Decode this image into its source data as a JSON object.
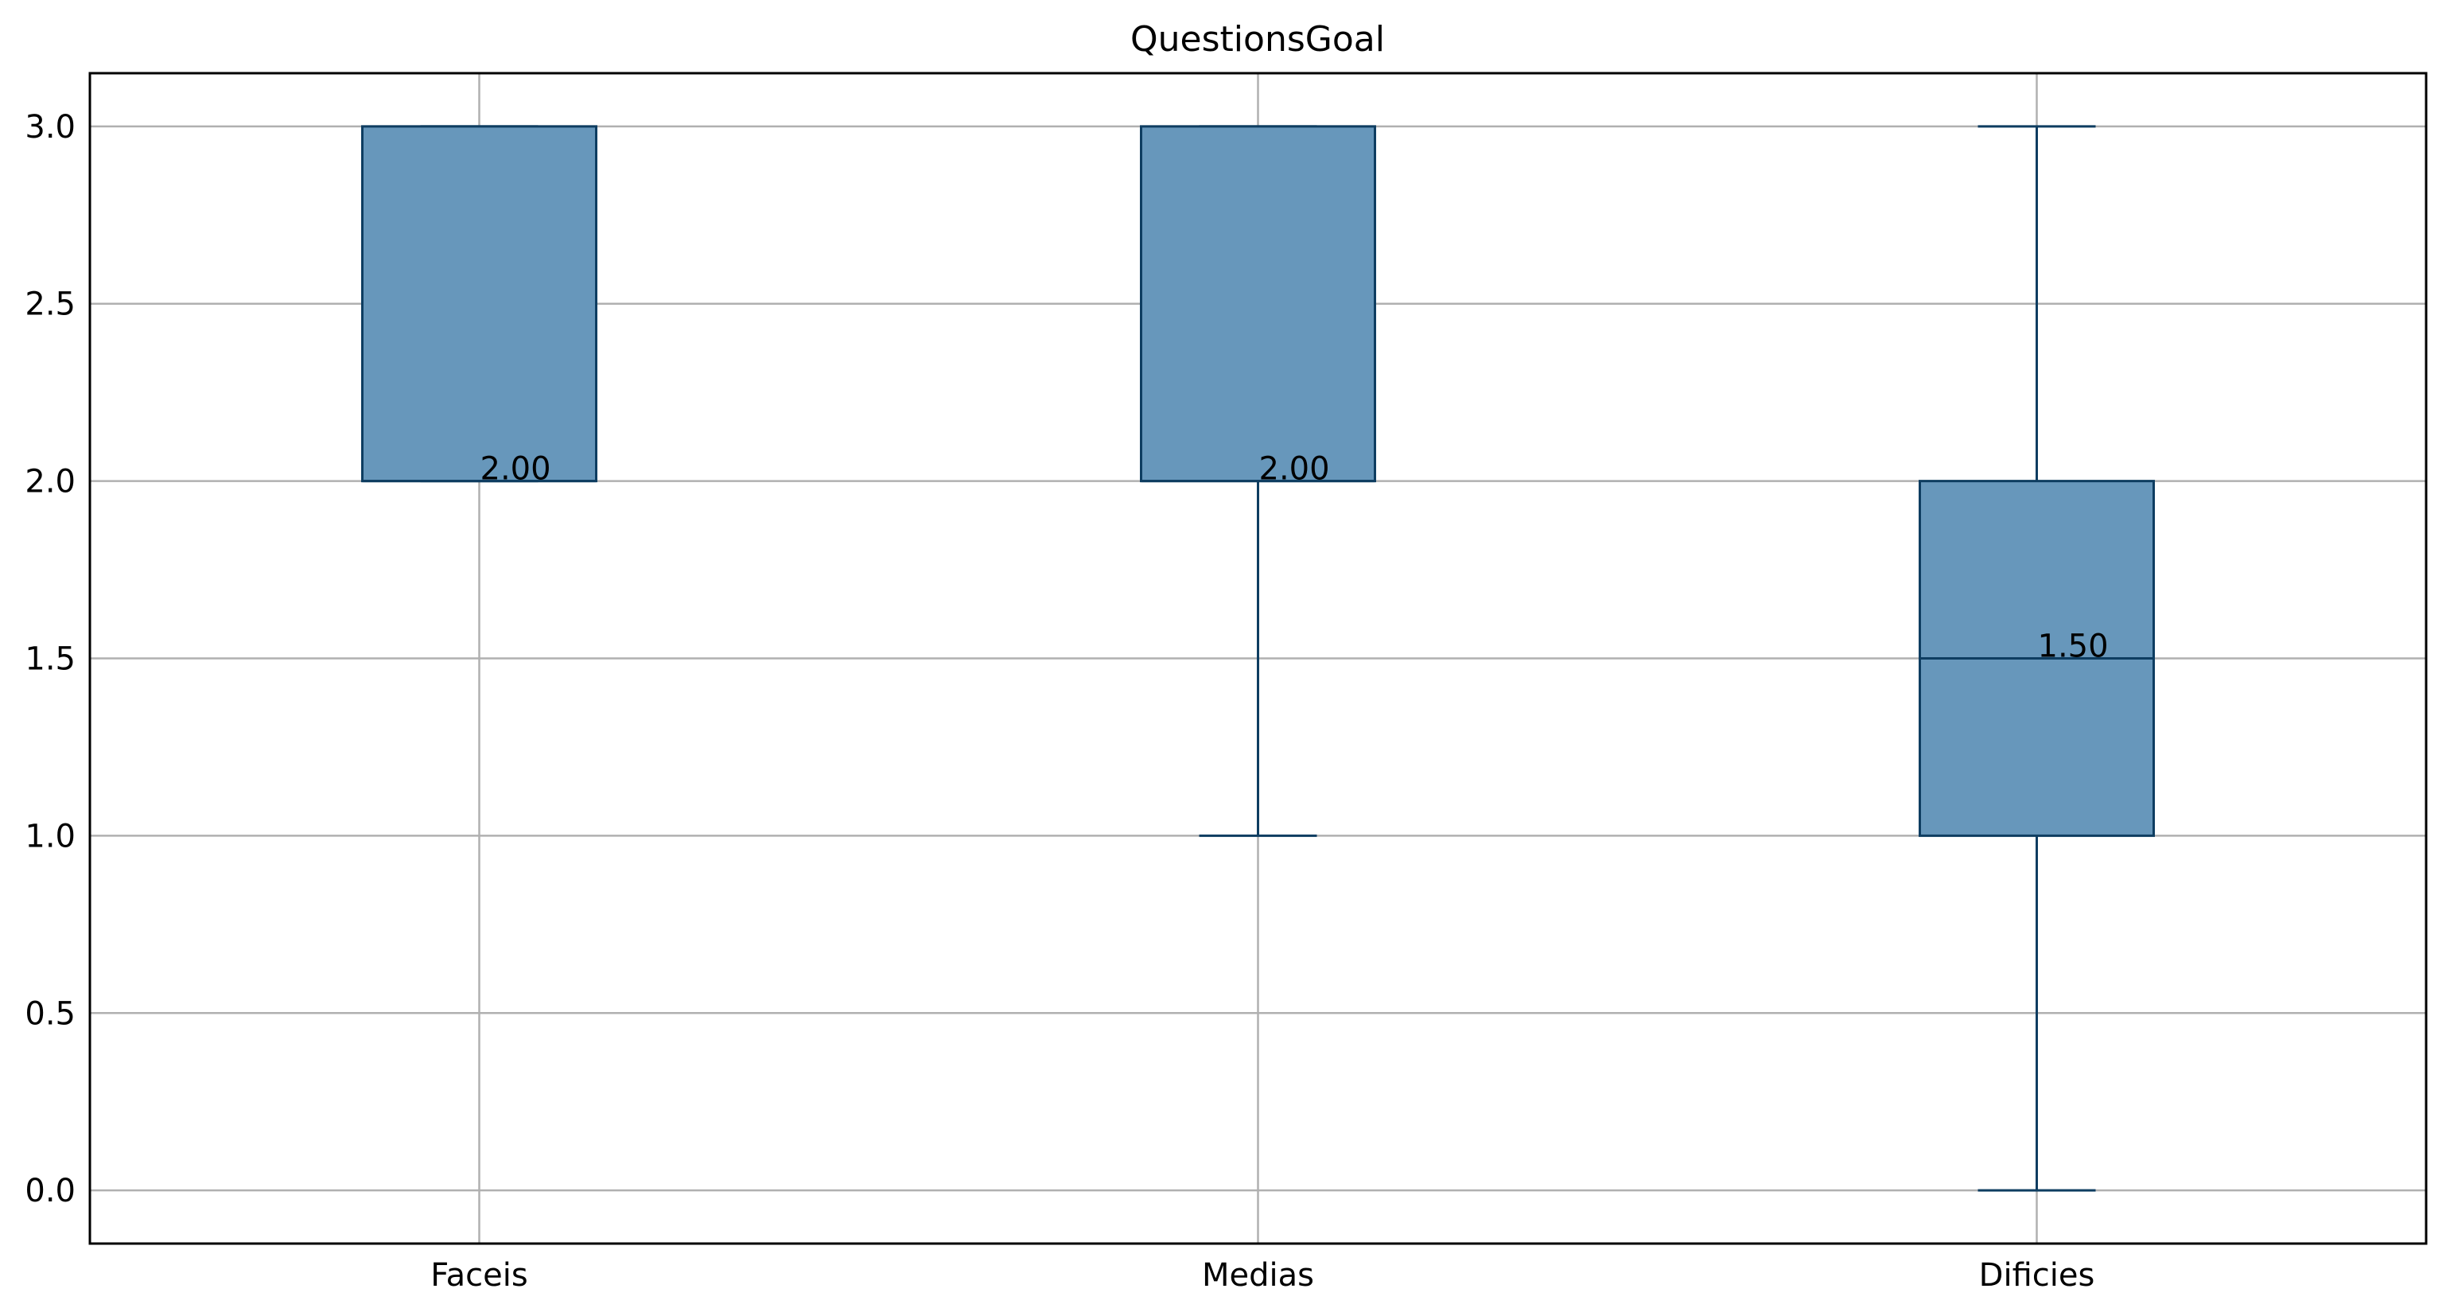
{
  "chart_data": {
    "type": "boxplot",
    "title": "QuestionsGoal",
    "xlabel": "",
    "ylabel": "",
    "ylim": [
      -0.15,
      3.15
    ],
    "yticks": [
      0.0,
      0.5,
      1.0,
      1.5,
      2.0,
      2.5,
      3.0
    ],
    "ytick_labels": [
      "0.0",
      "0.5",
      "1.0",
      "1.5",
      "2.0",
      "2.5",
      "3.0"
    ],
    "grid": true,
    "legend": "none",
    "categories": [
      "Faceis",
      "Medias",
      "Dificies"
    ],
    "boxes": [
      {
        "category": "Faceis",
        "whisker_low": 2.0,
        "q1": 2.0,
        "median": 2.0,
        "q3": 3.0,
        "whisker_high": 3.0,
        "median_label": "2.00"
      },
      {
        "category": "Medias",
        "whisker_low": 1.0,
        "q1": 2.0,
        "median": 2.0,
        "q3": 3.0,
        "whisker_high": 3.0,
        "median_label": "2.00"
      },
      {
        "category": "Dificies",
        "whisker_low": 0.0,
        "q1": 1.0,
        "median": 1.5,
        "q3": 2.0,
        "whisker_high": 3.0,
        "median_label": "1.50"
      }
    ],
    "colors": {
      "box_fill": "#6797bb",
      "box_edge": "#0e3d61",
      "grid": "#b0b0b0",
      "axis": "#000000"
    }
  }
}
